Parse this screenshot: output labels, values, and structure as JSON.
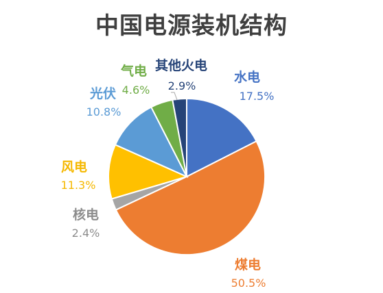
{
  "chart_data": {
    "type": "pie",
    "title": "中国电源装机结构",
    "slices": [
      {
        "label": "水电",
        "value": 17.5,
        "value_label": "17.5%",
        "color": "#4472c4",
        "label_color": "#4472c4",
        "value_color": "#4472c4"
      },
      {
        "label": "煤电",
        "value": 50.5,
        "value_label": "50.5%",
        "color": "#ed7d31",
        "label_color": "#ed7d31",
        "value_color": "#ed7d31"
      },
      {
        "label": "核电",
        "value": 2.4,
        "value_label": "2.4%",
        "color": "#a5a5a5",
        "label_color": "#8c8c8c",
        "value_color": "#8c8c8c"
      },
      {
        "label": "风电",
        "value": 11.3,
        "value_label": "11.3%",
        "color": "#ffc000",
        "label_color": "#f5b800",
        "value_color": "#f5b800"
      },
      {
        "label": "光伏",
        "value": 10.8,
        "value_label": "10.8%",
        "color": "#5b9bd5",
        "label_color": "#5b9bd5",
        "value_color": "#5b9bd5"
      },
      {
        "label": "气电",
        "value": 4.6,
        "value_label": "4.6%",
        "color": "#70ad47",
        "label_color": "#70ad47",
        "value_color": "#70ad47"
      },
      {
        "label": "其他火电",
        "value": 2.9,
        "value_label": "2.9%",
        "color": "#264478",
        "label_color": "#264478",
        "value_color": "#264478"
      }
    ],
    "start_angle_deg": 0,
    "direction": "clockwise",
    "legend": "none"
  }
}
